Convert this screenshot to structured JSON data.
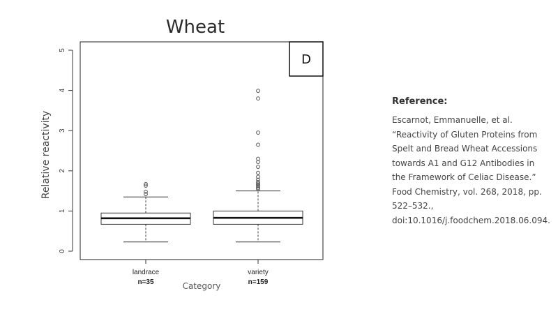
{
  "chart_data": {
    "type": "box",
    "title": "Wheat",
    "panel_label": "D",
    "xlabel": "Category",
    "ylabel": "Relative reactivity",
    "ylim": [
      0,
      5
    ],
    "yticks": [
      "0",
      "1",
      "2",
      "3",
      "4",
      "5"
    ],
    "categories": [
      {
        "name": "landrace",
        "n_label": "n=35",
        "whisker_low": 0.23,
        "q1": 0.67,
        "median": 0.82,
        "q3": 0.95,
        "whisker_high": 1.35,
        "outliers": [
          1.42,
          1.48,
          1.63,
          1.67
        ]
      },
      {
        "name": "variety",
        "n_label": "n=159",
        "whisker_low": 0.23,
        "q1": 0.67,
        "median": 0.83,
        "q3": 1.0,
        "whisker_high": 1.5,
        "outliers": [
          1.55,
          1.58,
          1.62,
          1.65,
          1.68,
          1.72,
          1.78,
          1.85,
          1.95,
          2.1,
          2.22,
          2.3,
          2.65,
          2.95,
          3.8,
          3.99
        ]
      }
    ]
  },
  "reference": {
    "heading": "Reference:",
    "lines": [
      "Escarnot, Emmanuelle, et al.",
      "“Reactivity of Gluten Proteins from",
      "Spelt and Bread Wheat Accessions",
      "towards A1 and G12 Antibodies in",
      "the Framework of Celiac Disease.”",
      "Food Chemistry, vol. 268, 2018, pp.",
      "522–532.,",
      "doi:10.1016/j.foodchem.2018.06.094."
    ]
  }
}
